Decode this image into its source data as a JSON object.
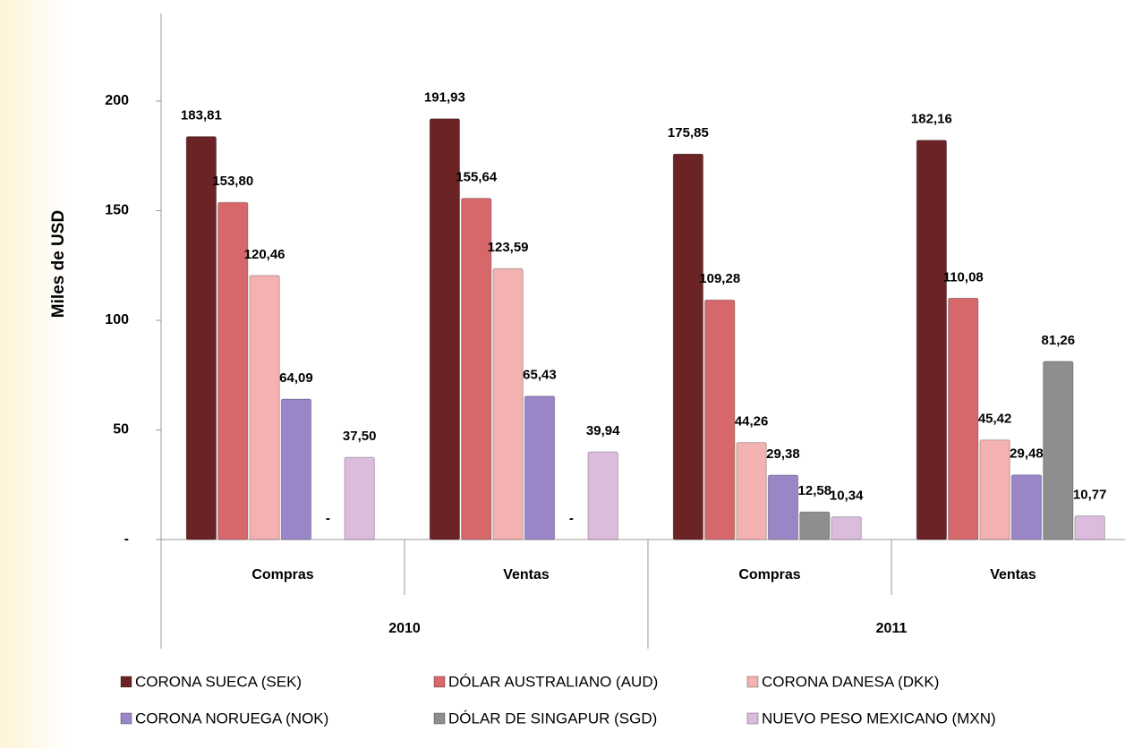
{
  "chart_data": {
    "type": "bar",
    "y_label": "Miles de USD",
    "groups": [
      {
        "name": "2010",
        "categories": [
          "Compras",
          "Ventas"
        ]
      },
      {
        "name": "2011",
        "categories": [
          "Compras",
          "Ventas"
        ]
      }
    ],
    "series": [
      {
        "name": "CORONA SUECA  (SEK)",
        "color": "#6b2326",
        "values": [
          183.81,
          191.93,
          175.85,
          182.16
        ],
        "value_labels": [
          "183,81",
          "191,93",
          "175,85",
          "182,16"
        ]
      },
      {
        "name": "DÓLAR AUSTRALIANO  (AUD)",
        "color": "#d6686b",
        "values": [
          153.8,
          155.64,
          109.28,
          110.08
        ],
        "value_labels": [
          "153,80",
          "155,64",
          "109,28",
          "110,08"
        ]
      },
      {
        "name": "CORONA DANESA  (DKK)",
        "color": "#f4b1b1",
        "values": [
          120.46,
          123.59,
          44.26,
          45.42
        ],
        "value_labels": [
          "120,46",
          "123,59",
          "44,26",
          "45,42"
        ]
      },
      {
        "name": "CORONA NORUEGA  (NOK)",
        "color": "#9a86c6",
        "values": [
          64.09,
          65.43,
          29.38,
          29.48
        ],
        "value_labels": [
          "64,09",
          "65,43",
          "29,38",
          "29,48"
        ]
      },
      {
        "name": "DÓLAR DE SINGAPUR (SGD)",
        "color": "#8e8e8e",
        "values": [
          0,
          0,
          12.58,
          81.26
        ],
        "value_labels": [
          "-",
          "-",
          "12,58",
          "81,26"
        ]
      },
      {
        "name": "NUEVO PESO MEXICANO  (MXN)",
        "color": "#dcbcdc",
        "values": [
          37.5,
          39.94,
          10.34,
          10.77
        ],
        "value_labels": [
          "37,50",
          "39,94",
          "10,34",
          "10,77"
        ]
      }
    ],
    "ylim": [
      0,
      240
    ],
    "yticks": [
      {
        "value": 0,
        "label": "-"
      },
      50,
      100,
      150,
      200
    ],
    "legend": "bottom"
  }
}
